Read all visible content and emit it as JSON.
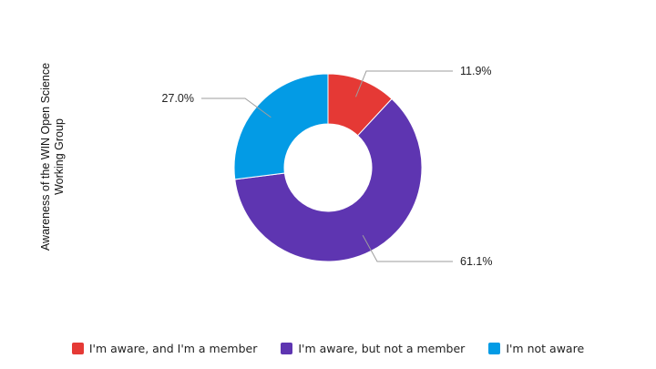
{
  "chart_data": {
    "type": "pie",
    "donut": true,
    "ylabel_lines": [
      "Awareness of the WIN Open Science",
      "Working Group"
    ],
    "slices": [
      {
        "name": "I'm aware, and I'm a member",
        "value": 11.9,
        "label": "11.9%",
        "color": "#e53935"
      },
      {
        "name": "I'm aware, but not a member",
        "value": 61.1,
        "label": "61.1%",
        "color": "#5e35b1"
      },
      {
        "name": "I'm not aware",
        "value": 27.0,
        "label": "27.0%",
        "color": "#039be5"
      }
    ],
    "legend_position": "bottom"
  }
}
